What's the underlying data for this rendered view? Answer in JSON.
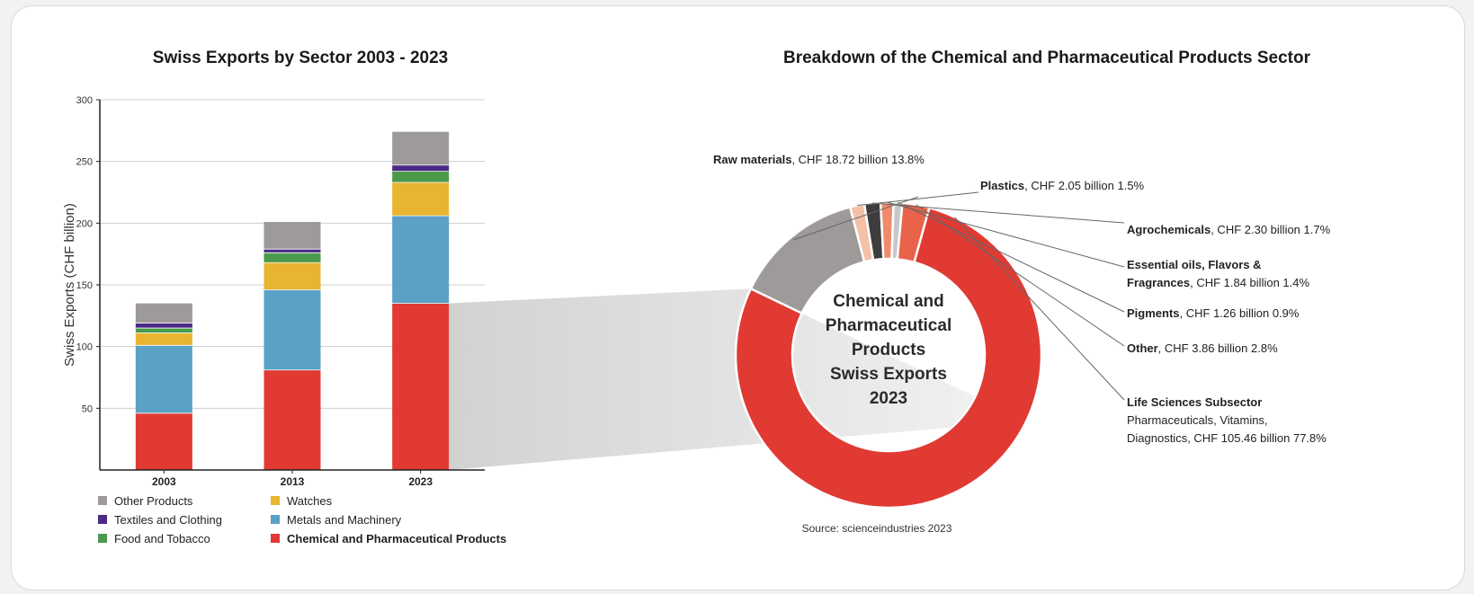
{
  "chart_data": [
    {
      "type": "bar",
      "stacked": true,
      "title": "Swiss Exports  by Sector 2003 - 2023",
      "xlabel": "",
      "ylabel": "Swiss Exports  (CHF billion)",
      "ylim": [
        0,
        300
      ],
      "yticks": [
        50,
        100,
        150,
        200,
        250,
        300
      ],
      "grid": true,
      "legend_position": "bottom",
      "categories": [
        "2003",
        "2013",
        "2023"
      ],
      "series": [
        {
          "name": "Chemical and Pharmaceutical Products",
          "color": "#e03a33",
          "values": [
            46,
            81,
            135
          ]
        },
        {
          "name": "Metals and Machinery",
          "color": "#5ba0c5",
          "values": [
            55,
            65,
            71
          ]
        },
        {
          "name": "Watches",
          "color": "#e9b42f",
          "values": [
            10,
            22,
            27
          ]
        },
        {
          "name": "Food and Tobacco",
          "color": "#4a9a4c",
          "values": [
            4,
            8,
            9
          ]
        },
        {
          "name": "Textiles and Clothing",
          "color": "#4b2a85",
          "values": [
            4,
            3,
            5
          ]
        },
        {
          "name": "Other Products",
          "color": "#9e9a99",
          "values": [
            16,
            22,
            27
          ]
        }
      ],
      "legend": [
        {
          "name": "Other Products",
          "color": "#9e9a99",
          "bold": false
        },
        {
          "name": "Watches",
          "color": "#e9b42f",
          "bold": false
        },
        {
          "name": "Textiles and Clothing",
          "color": "#4b2a85",
          "bold": false
        },
        {
          "name": "Metals and Machinery",
          "color": "#5ba0c5",
          "bold": false
        },
        {
          "name": "Food and Tobacco",
          "color": "#4a9a4c",
          "bold": false
        },
        {
          "name": "Chemical and Pharmaceutical Products",
          "color": "#e03a33",
          "bold": true
        }
      ]
    },
    {
      "type": "pie",
      "donut": true,
      "title": "Breakdown of the Chemical and Pharmaceutical Products Sector",
      "center_label": [
        "Chemical and",
        "Pharmaceutical",
        "Products",
        "Swiss Exports",
        "2023"
      ],
      "source": "Source: scienceindustries 2023",
      "slices": [
        {
          "name": "Raw materials",
          "value": 18.72,
          "percent": 13.8,
          "color": "#9e9a99",
          "label_rest": ", CHF 18.72 billion 13.8%"
        },
        {
          "name": "Plastics",
          "value": 2.05,
          "percent": 1.5,
          "color": "#f4c0a6",
          "label_rest": ", CHF 2.05 billion 1.5%"
        },
        {
          "name": "Agrochemicals",
          "value": 2.3,
          "percent": 1.7,
          "color": "#3d3d3d",
          "label_rest": ", CHF 2.30 billion 1.7%"
        },
        {
          "name": "Essential oils, Flavors & Fragrances",
          "value": 1.84,
          "percent": 1.4,
          "color": "#f08a6c",
          "label_line1": "Essential oils, Flavors &",
          "label_line2_bold": "Fragrances",
          "label_rest": ", CHF 1.84 billion 1.4%"
        },
        {
          "name": "Pigments",
          "value": 1.26,
          "percent": 0.9,
          "color": "#c8c8c8",
          "label_rest": ", CHF 1.26 billion 0.9%"
        },
        {
          "name": "Other",
          "value": 3.86,
          "percent": 2.8,
          "color": "#e8634a",
          "label_rest": ", CHF 3.86 billion  2.8%"
        },
        {
          "name": "Life Sciences Subsector",
          "value": 105.46,
          "percent": 77.8,
          "color": "#e03a33",
          "label_line2": "Pharmaceuticals, Vitamins,",
          "label_line3": "Diagnostics, CHF 105.46 billion 77.8%"
        }
      ]
    }
  ]
}
